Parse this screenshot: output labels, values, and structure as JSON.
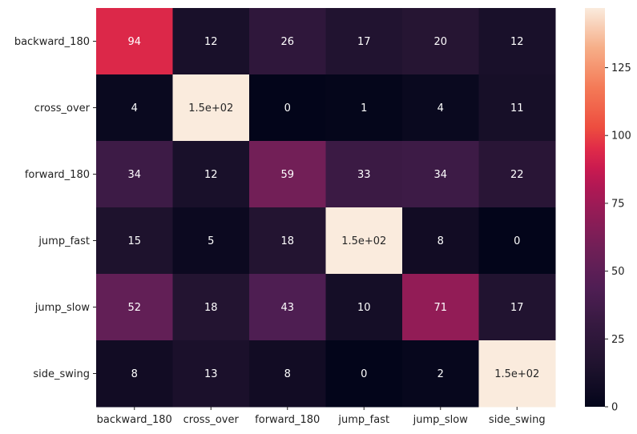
{
  "chart_data": {
    "type": "heatmap",
    "title": "",
    "xlabel": "",
    "ylabel": "",
    "x_categories": [
      "backward_180",
      "cross_over",
      "forward_180",
      "jump_fast",
      "jump_slow",
      "side_swing"
    ],
    "y_categories": [
      "backward_180",
      "cross_over",
      "forward_180",
      "jump_fast",
      "jump_slow",
      "side_swing"
    ],
    "values": [
      [
        94,
        12,
        26,
        17,
        20,
        12
      ],
      [
        4,
        150,
        0,
        1,
        4,
        11
      ],
      [
        34,
        12,
        59,
        33,
        34,
        22
      ],
      [
        15,
        5,
        18,
        150,
        8,
        0
      ],
      [
        52,
        18,
        43,
        10,
        71,
        17
      ],
      [
        8,
        13,
        8,
        0,
        2,
        150
      ]
    ],
    "annotations": [
      [
        "94",
        "12",
        "26",
        "17",
        "20",
        "12"
      ],
      [
        "4",
        "1.5e+02",
        "0",
        "1",
        "4",
        "11"
      ],
      [
        "34",
        "12",
        "59",
        "33",
        "34",
        "22"
      ],
      [
        "15",
        "5",
        "18",
        "1.5e+02",
        "8",
        "0"
      ],
      [
        "52",
        "18",
        "43",
        "10",
        "71",
        "17"
      ],
      [
        "8",
        "13",
        "8",
        "0",
        "2",
        "1.5e+02"
      ]
    ],
    "colorbar": {
      "range": [
        0,
        147
      ],
      "ticks": [
        0,
        25,
        50,
        75,
        100,
        125
      ],
      "tick_labels": [
        "0",
        "25",
        "50",
        "75",
        "100",
        "125"
      ],
      "colormap": "rocket"
    },
    "text_colors": {
      "on_dark": "#ffffff",
      "on_light": "#262626"
    }
  }
}
